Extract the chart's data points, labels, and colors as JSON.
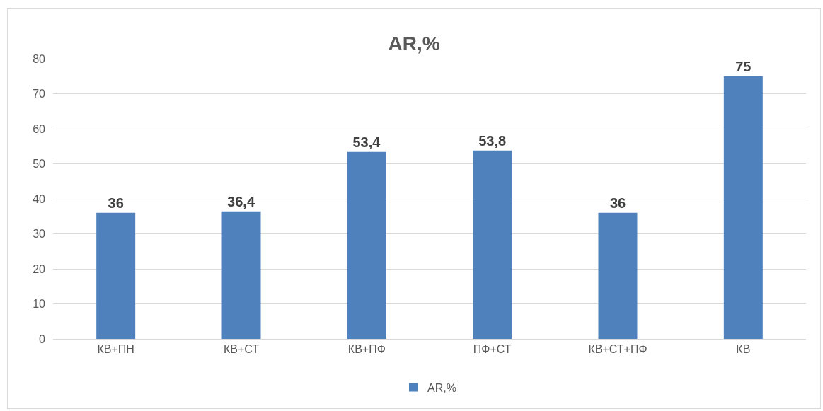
{
  "chart_data": {
    "type": "bar",
    "title": "AR,%",
    "categories": [
      "КВ+ПН",
      "КВ+СТ",
      "КВ+ПФ",
      "ПФ+СТ",
      "КВ+СТ+ПФ",
      "КВ"
    ],
    "series": [
      {
        "name": "AR,%",
        "color": "#4f81bd",
        "values": [
          36,
          36.4,
          53.4,
          53.8,
          36,
          75
        ],
        "value_labels": [
          "36",
          "36,4",
          "53,4",
          "53,8",
          "36",
          "75"
        ]
      }
    ],
    "ylim": [
      0,
      80
    ],
    "yticks": [
      0,
      10,
      20,
      30,
      40,
      50,
      60,
      70,
      80
    ],
    "grid": "y",
    "legend": "bottom"
  }
}
